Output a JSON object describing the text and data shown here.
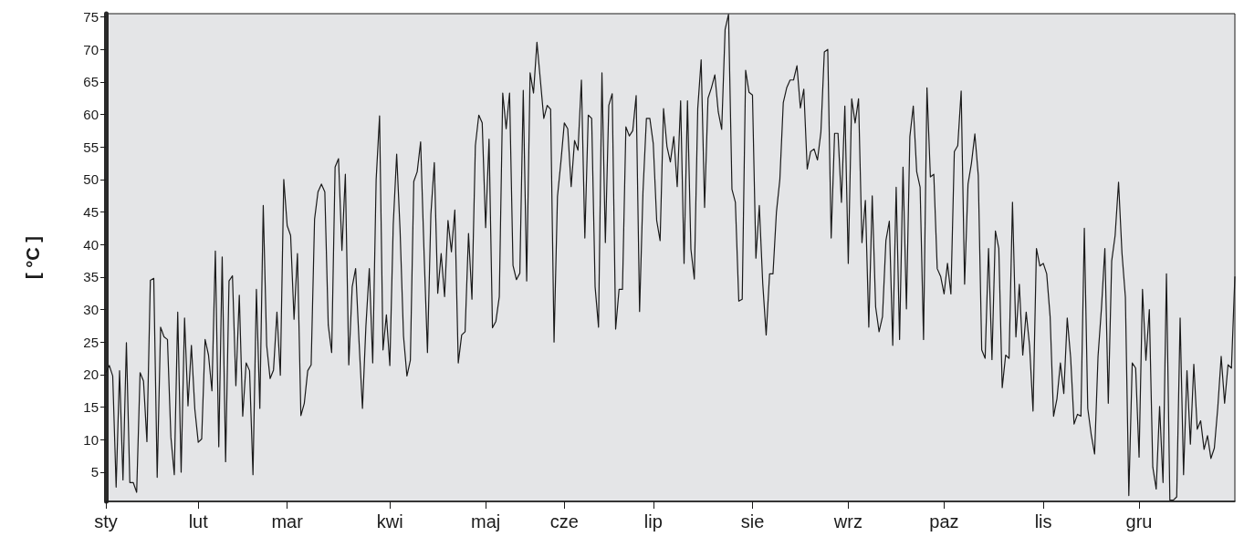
{
  "chart_data": {
    "type": "line",
    "ylabel": "[ °C ]",
    "color": "#1a1a1a",
    "marker": "none",
    "line_style": "solid",
    "ylim": [
      0.5,
      75.5
    ],
    "yticks": [
      5,
      10,
      15,
      20,
      25,
      30,
      35,
      40,
      45,
      50,
      55,
      60,
      65,
      70,
      75
    ],
    "categories": [
      "sty",
      null,
      null,
      null,
      null,
      null,
      null,
      null,
      null,
      null,
      null,
      null,
      null,
      null,
      null,
      null,
      null,
      null,
      null,
      null,
      null,
      null,
      null,
      null,
      null,
      null,
      null,
      "lut",
      null,
      null,
      null,
      null,
      null,
      null,
      null,
      null,
      null,
      null,
      null,
      null,
      null,
      null,
      null,
      null,
      null,
      null,
      null,
      null,
      null,
      null,
      null,
      null,
      null,
      "mar",
      null,
      null,
      null,
      null,
      null,
      null,
      null,
      null,
      null,
      null,
      null,
      null,
      null,
      null,
      null,
      null,
      null,
      null,
      null,
      null,
      null,
      null,
      null,
      null,
      null,
      null,
      null,
      null,
      null,
      "kwi",
      null,
      null,
      null,
      null,
      null,
      null,
      null,
      null,
      null,
      null,
      null,
      null,
      null,
      null,
      null,
      null,
      null,
      null,
      null,
      null,
      null,
      null,
      null,
      null,
      null,
      null,
      null,
      "maj",
      null,
      null,
      null,
      null,
      null,
      null,
      null,
      null,
      null,
      null,
      null,
      null,
      null,
      null,
      null,
      null,
      null,
      null,
      null,
      null,
      null,
      null,
      "cze",
      null,
      null,
      null,
      null,
      null,
      null,
      null,
      null,
      null,
      null,
      null,
      null,
      null,
      null,
      null,
      null,
      null,
      null,
      null,
      null,
      null,
      null,
      null,
      null,
      null,
      "lip",
      null,
      null,
      null,
      null,
      null,
      null,
      null,
      null,
      null,
      null,
      null,
      null,
      null,
      null,
      null,
      null,
      null,
      null,
      null,
      null,
      null,
      null,
      null,
      null,
      null,
      null,
      null,
      null,
      "sie",
      null,
      null,
      null,
      null,
      null,
      null,
      null,
      null,
      null,
      null,
      null,
      null,
      null,
      null,
      null,
      null,
      null,
      null,
      null,
      null,
      null,
      null,
      null,
      null,
      null,
      null,
      null,
      "wrz",
      null,
      null,
      null,
      null,
      null,
      null,
      null,
      null,
      null,
      null,
      null,
      null,
      null,
      null,
      null,
      null,
      null,
      null,
      null,
      null,
      null,
      null,
      null,
      null,
      null,
      null,
      null,
      "paz",
      null,
      null,
      null,
      null,
      null,
      null,
      null,
      null,
      null,
      null,
      null,
      null,
      null,
      null,
      null,
      null,
      null,
      null,
      null,
      null,
      null,
      null,
      null,
      null,
      null,
      null,
      null,
      null,
      "lis",
      null,
      null,
      null,
      null,
      null,
      null,
      null,
      null,
      null,
      null,
      null,
      null,
      null,
      null,
      null,
      null,
      null,
      null,
      null,
      null,
      null,
      null,
      null,
      null,
      null,
      null,
      null,
      "gru",
      null,
      null,
      null,
      null,
      null,
      null,
      null,
      null,
      null,
      null,
      null,
      null,
      null,
      null,
      null,
      null,
      null,
      null,
      null,
      null,
      null,
      null,
      null,
      null,
      null,
      null,
      null,
      null
    ],
    "values": [
      20.3,
      21.4,
      19.8,
      2.7,
      20.6,
      3.8,
      24.9,
      3.4,
      3.4,
      1.9,
      20.3,
      19,
      9.7,
      34.5,
      34.8,
      4.2,
      27.3,
      25.8,
      25.4,
      10.4,
      4.6,
      29.6,
      5,
      28.7,
      15.2,
      24.5,
      14.7,
      9.6,
      10.1,
      25.4,
      23,
      17.5,
      39,
      8.9,
      38.1,
      6.6,
      34.4,
      35.2,
      18.3,
      32.2,
      13.6,
      21.8,
      20.6,
      4.6,
      33.1,
      14.8,
      46,
      24.5,
      19.4,
      20.7,
      29.6,
      19.9,
      50,
      42.9,
      41.4,
      28.5,
      38.6,
      13.7,
      15.6,
      20.6,
      21.5,
      43.9,
      48.1,
      49.3,
      48.1,
      27.6,
      23.4,
      51.9,
      53.2,
      39.1,
      50.8,
      21.5,
      33.5,
      36.3,
      25.1,
      14.8,
      27.4,
      36.3,
      21.8,
      50,
      59.8,
      23.8,
      29.2,
      21.4,
      43.1,
      53.9,
      42.1,
      25.9,
      19.8,
      22.2,
      49.7,
      51.2,
      55.8,
      38.8,
      23.4,
      44.7,
      52.6,
      32.5,
      38.6,
      32,
      43.7,
      38.9,
      45.3,
      21.8,
      26.1,
      26.6,
      41.7,
      31.6,
      55.2,
      59.9,
      58.7,
      42.6,
      56.2,
      27.2,
      28.2,
      32,
      63.3,
      57.8,
      63.3,
      36.8,
      34.6,
      35.6,
      63.7,
      34.4,
      66.4,
      63.3,
      71.1,
      65.3,
      59.4,
      61.4,
      60.8,
      25,
      47.4,
      52.7,
      58.7,
      57.8,
      48.9,
      56,
      54.5,
      65.3,
      41,
      59.9,
      59.4,
      33.5,
      27.3,
      66.4,
      40.3,
      61.4,
      63.2,
      27,
      33.1,
      33.1,
      58.1,
      56.7,
      57.5,
      62.9,
      29.7,
      48.2,
      59.4,
      59.4,
      55.5,
      43.7,
      40.6,
      60.9,
      55.1,
      52.7,
      56.6,
      48.9,
      62.1,
      37.1,
      62.1,
      39.3,
      34.7,
      60.9,
      68.4,
      45.7,
      62.5,
      64.1,
      66.1,
      60.4,
      57.7,
      73.1,
      75.4,
      48.5,
      46.5,
      31.3,
      31.6,
      66.8,
      63.4,
      63,
      37.9,
      46,
      34,
      26.1,
      35.5,
      35.5,
      45,
      50,
      61.8,
      64.1,
      65.3,
      65.3,
      67.5,
      61,
      63.9,
      51.6,
      54.3,
      54.7,
      53,
      57.3,
      69.6,
      70,
      41,
      57.1,
      57.1,
      46.5,
      61.3,
      37.1,
      62.4,
      58.7,
      62.4,
      40.3,
      46.8,
      27.3,
      47.5,
      30.4,
      26.6,
      28.9,
      40.6,
      43.6,
      24.5,
      48.8,
      25.4,
      51.9,
      30.1,
      56.6,
      61.3,
      51.2,
      48.8,
      25.4,
      64.1,
      50.4,
      50.8,
      36.3,
      35.1,
      32.4,
      37.1,
      32.4,
      54.3,
      55.2,
      63.6,
      33.9,
      49.3,
      52.5,
      57,
      50.6,
      23.8,
      22.5,
      39.4,
      22.3,
      42.1,
      39.4,
      18,
      23,
      22.5,
      46.5,
      25.8,
      33.9,
      23,
      29.6,
      24.4,
      14.4,
      39.4,
      36.7,
      37.1,
      35.5,
      28.9,
      13.6,
      16.3,
      21.8,
      17.1,
      28.7,
      22.6,
      12.4,
      13.9,
      13.6,
      42.5,
      14.8,
      10.8,
      7.8,
      22.8,
      30.2,
      39.4,
      15.6,
      37.5,
      41.4,
      49.6,
      38.7,
      31.9,
      1.4,
      21.8,
      21,
      7.3,
      33.1,
      22.2,
      30,
      5.8,
      2.4,
      15.1,
      3.4,
      35.5,
      0.7,
      0.7,
      1.2,
      28.7,
      4.6,
      20.6,
      9.3,
      21.6,
      11.6,
      12.9,
      8.5,
      10.6,
      7.1,
      8.7,
      14.9,
      22.8,
      15.6,
      21.5,
      21,
      35.1
    ]
  }
}
